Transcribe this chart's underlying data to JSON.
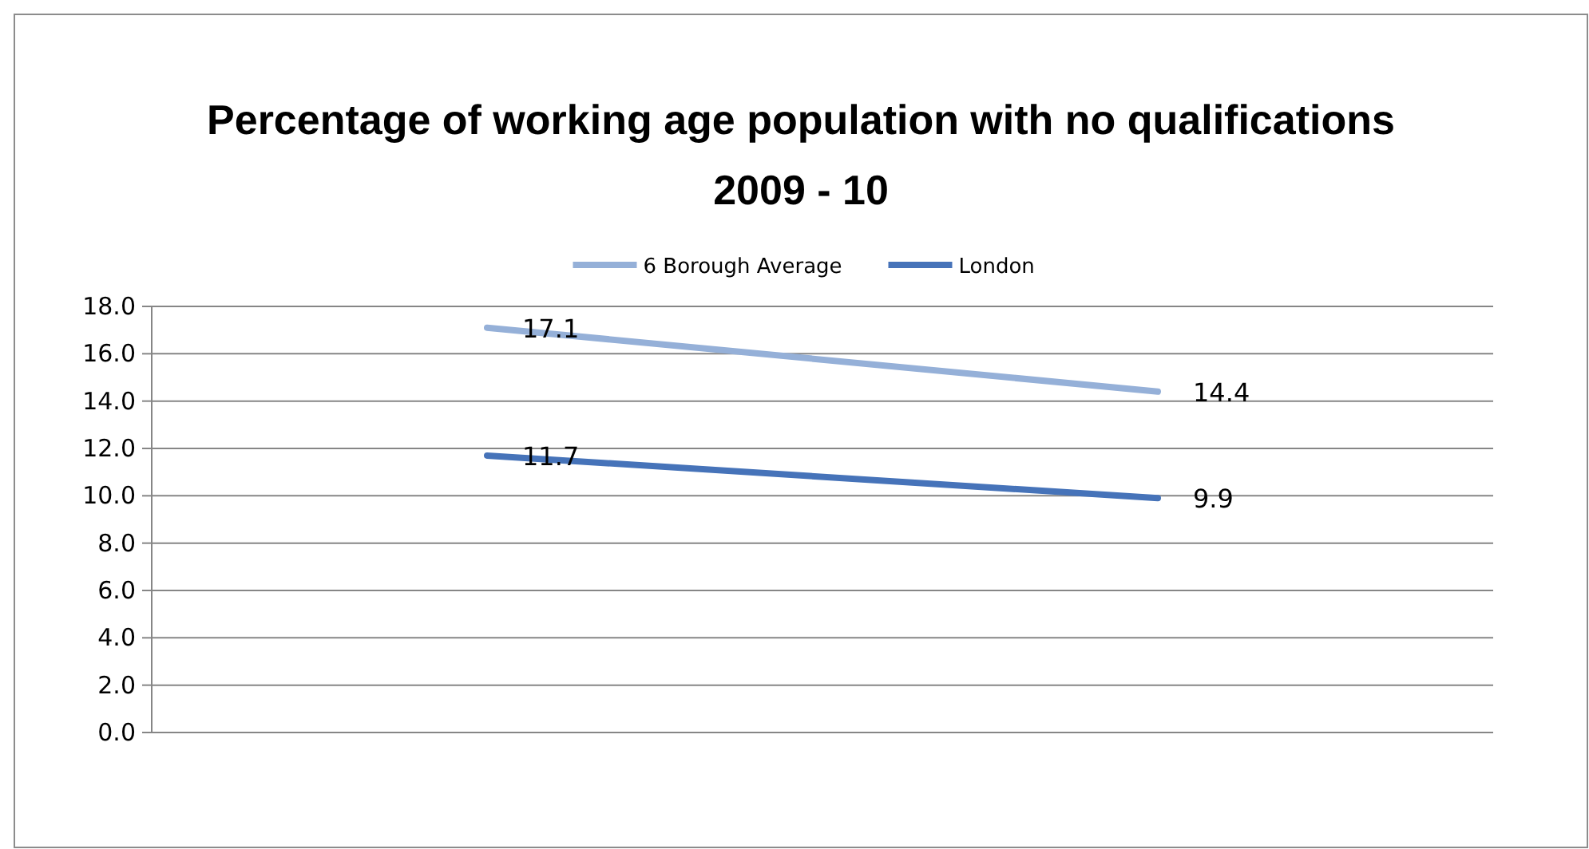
{
  "chart_data": {
    "type": "line",
    "title": "Percentage of working age population with no qualifications 2009 - 10",
    "categories": [
      null,
      null
    ],
    "series": [
      {
        "name": "6 Borough Average",
        "color": "#95b0d8",
        "values": [
          17.1,
          14.4
        ]
      },
      {
        "name": "London",
        "color": "#4673b9",
        "values": [
          11.7,
          9.9
        ]
      }
    ],
    "ylim": [
      0,
      18
    ],
    "yticks": [
      {
        "value": 0,
        "label": "0.0"
      },
      {
        "value": 2,
        "label": "2.0"
      },
      {
        "value": 4,
        "label": "4.0"
      },
      {
        "value": 6,
        "label": "6.0"
      },
      {
        "value": 8,
        "label": "8.0"
      },
      {
        "value": 10,
        "label": "10.0"
      },
      {
        "value": 12,
        "label": "12.0"
      },
      {
        "value": 14,
        "label": "14.0"
      },
      {
        "value": 16,
        "label": "16.0"
      },
      {
        "value": 18,
        "label": "18.0"
      }
    ],
    "grid": "y",
    "legend": "top",
    "marker": "none",
    "line_style": "solid",
    "data_labels": true,
    "tick_labels": "y"
  }
}
